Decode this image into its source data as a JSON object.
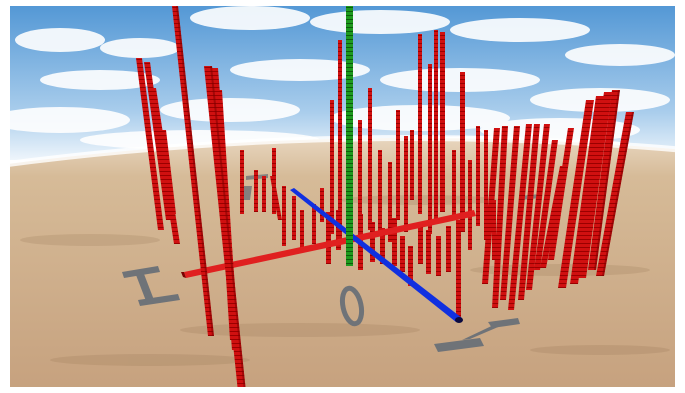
{
  "scene": {
    "type": "3d-bar-field",
    "colors": {
      "sky_top": "#5b9fd8",
      "sky_bottom": "#cfe3f3",
      "horizon": "#ffffff",
      "ground_near": "#c8a98a",
      "ground_far": "#d8bfa0",
      "bar_red": "#d01010",
      "bar_red_dark": "#8a0000",
      "axis_green": "#1a8a1a",
      "axis_blue": "#1030e0",
      "axis_red": "#e02020",
      "glyph_gray": "#6f7378"
    },
    "ground_glyphs": [
      "I",
      "O",
      "I",
      "I"
    ]
  }
}
